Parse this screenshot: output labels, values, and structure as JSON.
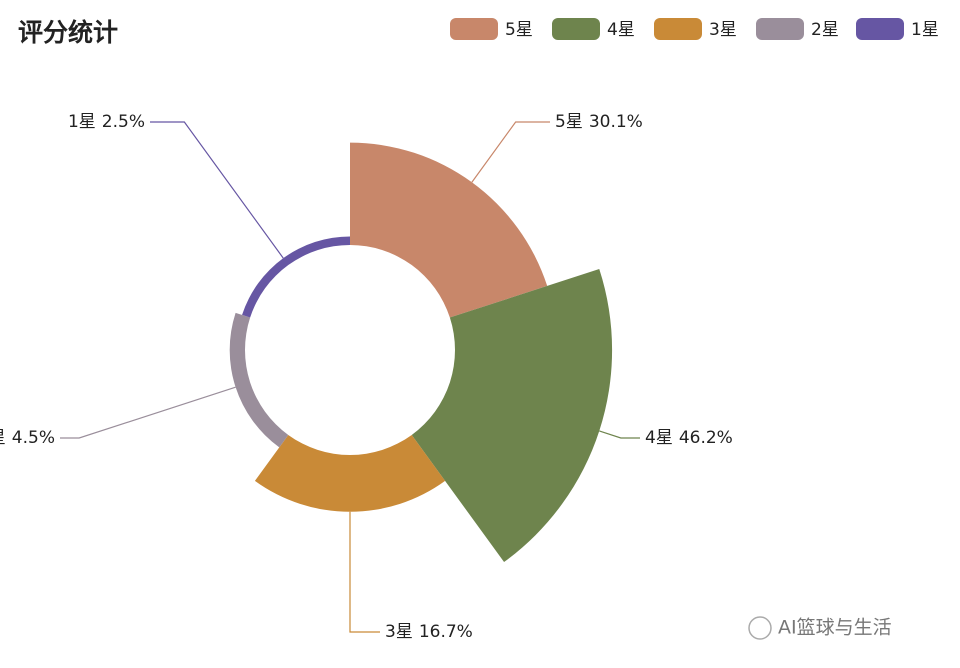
{
  "chart_data": {
    "type": "pie",
    "rose": true,
    "title": "评分统计",
    "categories": [
      "5星",
      "4星",
      "3星",
      "2星",
      "1星"
    ],
    "values": [
      30.1,
      46.2,
      16.7,
      4.5,
      2.5
    ],
    "value_labels": [
      "30.1%",
      "46.2%",
      "16.7%",
      "4.5%",
      "2.5%"
    ],
    "colors": [
      "#c8876a",
      "#6e844d",
      "#c98a37",
      "#9a8e9b",
      "#6656a3"
    ],
    "legend": "top-right"
  },
  "watermark": "AI篮球与生活"
}
